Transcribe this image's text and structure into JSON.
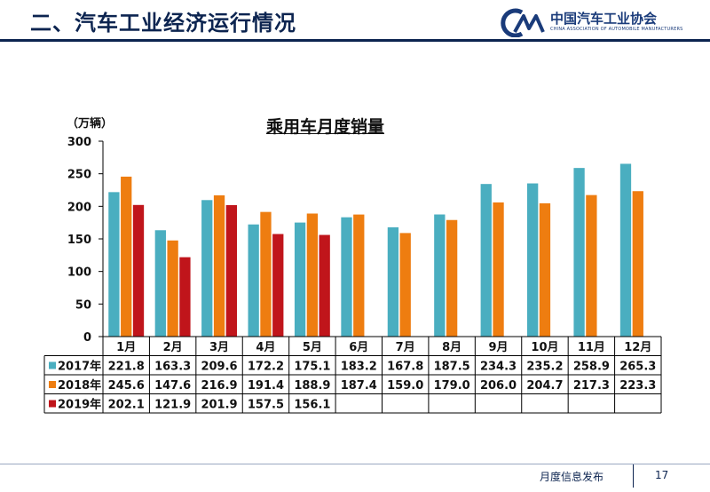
{
  "header": {
    "title": "二、汽车工业经济运行情况",
    "logo_cn": "中国汽车工业协会",
    "logo_en": "CHINA ASSOCIATION OF AUTOMOBILE MANUFACTURERS"
  },
  "footer": {
    "text": "月度信息发布",
    "page": "17"
  },
  "colors": {
    "s2017": "#4aaec0",
    "s2018": "#ee7d10",
    "s2019": "#c0151b",
    "accent": "#0c2450"
  },
  "chart_data": {
    "type": "bar",
    "title": "乘用车月度销量",
    "ylabel": "（万辆）",
    "xlabel": "",
    "ylim": [
      0,
      300
    ],
    "yticks": [
      0,
      50,
      100,
      150,
      200,
      250,
      300
    ],
    "categories": [
      "1月",
      "2月",
      "3月",
      "4月",
      "5月",
      "6月",
      "7月",
      "8月",
      "9月",
      "10月",
      "11月",
      "12月"
    ],
    "series": [
      {
        "name": "2017年",
        "values": [
          221.8,
          163.3,
          209.6,
          172.2,
          175.1,
          183.2,
          167.8,
          187.5,
          234.3,
          235.2,
          258.9,
          265.3
        ]
      },
      {
        "name": "2018年",
        "values": [
          245.6,
          147.6,
          216.9,
          191.4,
          188.9,
          187.4,
          159.0,
          179.0,
          206.0,
          204.7,
          217.3,
          223.3
        ]
      },
      {
        "name": "2019年",
        "values": [
          202.1,
          121.9,
          201.9,
          157.5,
          156.1,
          null,
          null,
          null,
          null,
          null,
          null,
          null
        ]
      }
    ]
  }
}
